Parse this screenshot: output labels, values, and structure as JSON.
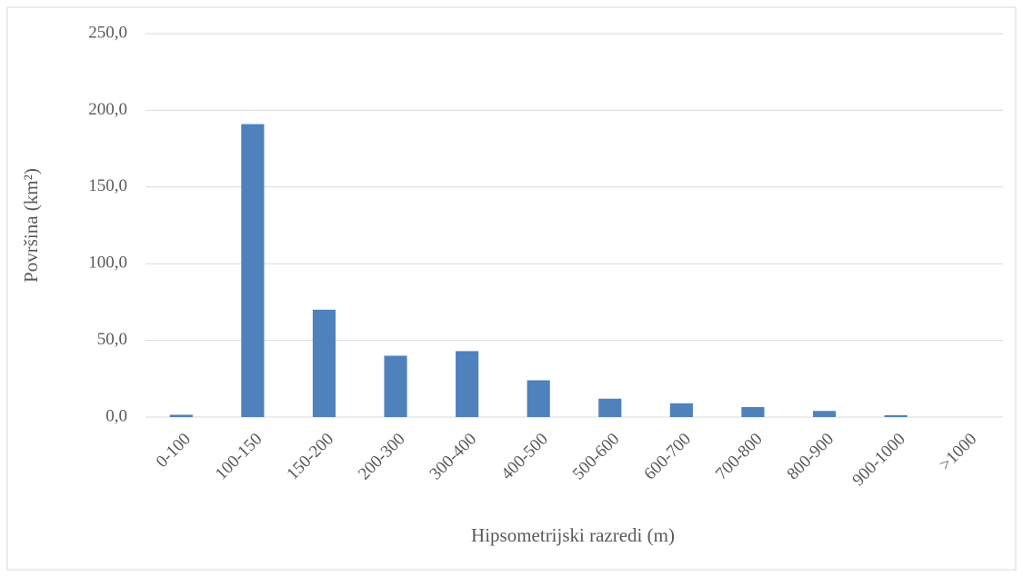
{
  "chart_data": {
    "type": "bar",
    "xlabel": "Hipsometrijski razredi (m)",
    "ylabel": "Površina (km²)",
    "categories": [
      "0-100",
      "100-150",
      "150-200",
      "200-300",
      "300-400",
      "400-500",
      "500-600",
      "600-700",
      "700-800",
      "800-900",
      "900-1000",
      ">1000"
    ],
    "values": [
      1.5,
      191,
      70,
      40,
      43,
      24,
      12,
      9,
      6.5,
      4,
      1.2,
      0
    ],
    "color": "#4f81bd",
    "ylim": [
      0,
      250
    ],
    "yticks": [
      {
        "value": 0,
        "label": "0,0"
      },
      {
        "value": 50,
        "label": "50,0"
      },
      {
        "value": 100,
        "label": "100,0"
      },
      {
        "value": 150,
        "label": "150,0"
      },
      {
        "value": 200,
        "label": "200,0"
      },
      {
        "value": 250,
        "label": "250,0"
      }
    ],
    "grid": true
  }
}
